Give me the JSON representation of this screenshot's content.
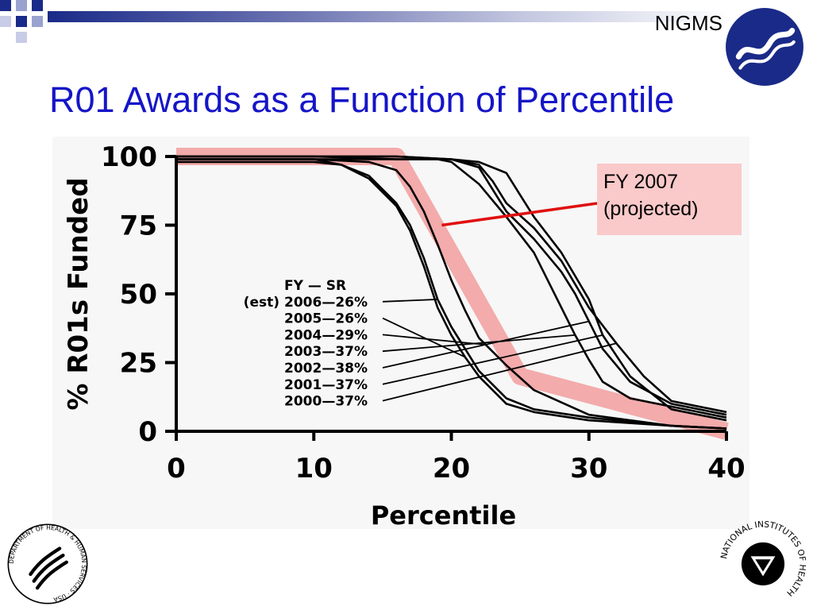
{
  "header": {
    "org_name": "NIGMS",
    "accent_color": "#1515c8",
    "bar_color": "#1a2a88"
  },
  "title": "R01 Awards as a Function of Percentile",
  "callout": {
    "line1": "FY 2007",
    "line2": "(projected)",
    "background": "#fac9c9",
    "pointer_color": "#e01010"
  },
  "footer": {
    "left_logo": "hhs-eagle-logo",
    "left_logo_text": "DEPARTMENT OF HEALTH & HUMAN SERVICES · USA",
    "right_logo": "nih-logo",
    "right_logo_text": "NATIONAL INSTITUTES OF HEALTH"
  },
  "chart_data": {
    "type": "line",
    "xlabel": "Percentile",
    "ylabel": "% R01s Funded",
    "xlim": [
      0,
      40
    ],
    "ylim": [
      0,
      100
    ],
    "xticks": [
      "0",
      "10",
      "20",
      "30",
      "40"
    ],
    "yticks": [
      "0",
      "25",
      "50",
      "75",
      "100"
    ],
    "grid": false,
    "legend_header": {
      "fy": "FY",
      "sep": "—",
      "sr": "SR"
    },
    "legend_note": "(est)",
    "series": [
      {
        "name": "2006",
        "label": "2006—26%",
        "x": [
          0,
          10,
          12,
          14,
          16,
          17,
          18,
          19,
          20,
          21,
          22,
          24,
          26,
          30,
          36,
          40
        ],
        "y": [
          98,
          98,
          97,
          93,
          83,
          75,
          63,
          48,
          38,
          30,
          22,
          12,
          8,
          5,
          2,
          1
        ]
      },
      {
        "name": "2005",
        "label": "2005—26%",
        "x": [
          0,
          10,
          12,
          14,
          16,
          17,
          18,
          19,
          20,
          21,
          22,
          24,
          26,
          30,
          36,
          40
        ],
        "y": [
          99,
          99,
          97,
          92,
          82,
          73,
          60,
          45,
          35,
          27,
          20,
          10,
          7,
          4,
          2,
          1
        ]
      },
      {
        "name": "2004",
        "label": "2004—29%",
        "x": [
          0,
          10,
          14,
          16,
          17,
          18,
          19,
          20,
          21,
          22,
          24,
          26,
          30,
          36,
          40
        ],
        "y": [
          99,
          99,
          98,
          95,
          89,
          80,
          68,
          55,
          44,
          34,
          24,
          15,
          6,
          2,
          1
        ]
      },
      {
        "name": "2003",
        "label": "2003—37%",
        "x": [
          0,
          10,
          16,
          19,
          20,
          22,
          24,
          26,
          27,
          28,
          29,
          30,
          31,
          33,
          36,
          40
        ],
        "y": [
          100,
          100,
          99,
          99,
          98,
          90,
          78,
          65,
          55,
          45,
          35,
          26,
          18,
          12,
          9,
          5
        ]
      },
      {
        "name": "2002",
        "label": "2002—38%",
        "x": [
          0,
          10,
          16,
          20,
          22,
          23,
          24,
          26,
          28,
          29,
          30,
          31,
          33,
          36,
          40
        ],
        "y": [
          100,
          100,
          100,
          99,
          96,
          88,
          80,
          70,
          58,
          50,
          40,
          30,
          18,
          10,
          6
        ]
      },
      {
        "name": "2001",
        "label": "2001—37%",
        "x": [
          0,
          10,
          16,
          20,
          22,
          24,
          25,
          26,
          28,
          30,
          31,
          33,
          36,
          40
        ],
        "y": [
          100,
          100,
          100,
          99,
          98,
          94,
          86,
          78,
          65,
          48,
          35,
          20,
          8,
          4
        ]
      },
      {
        "name": "2000",
        "label": "2000—37%",
        "x": [
          0,
          10,
          16,
          20,
          22,
          23,
          24,
          26,
          28,
          30,
          32,
          34,
          36,
          40
        ],
        "y": [
          99,
          99,
          99,
          99,
          97,
          91,
          83,
          74,
          62,
          45,
          32,
          20,
          11,
          7
        ]
      }
    ],
    "projection": {
      "name": "FY 2007 (projected)",
      "color": "#f07878",
      "x": [
        0,
        16,
        25,
        40
      ],
      "y": [
        100,
        100,
        20,
        0
      ]
    }
  }
}
